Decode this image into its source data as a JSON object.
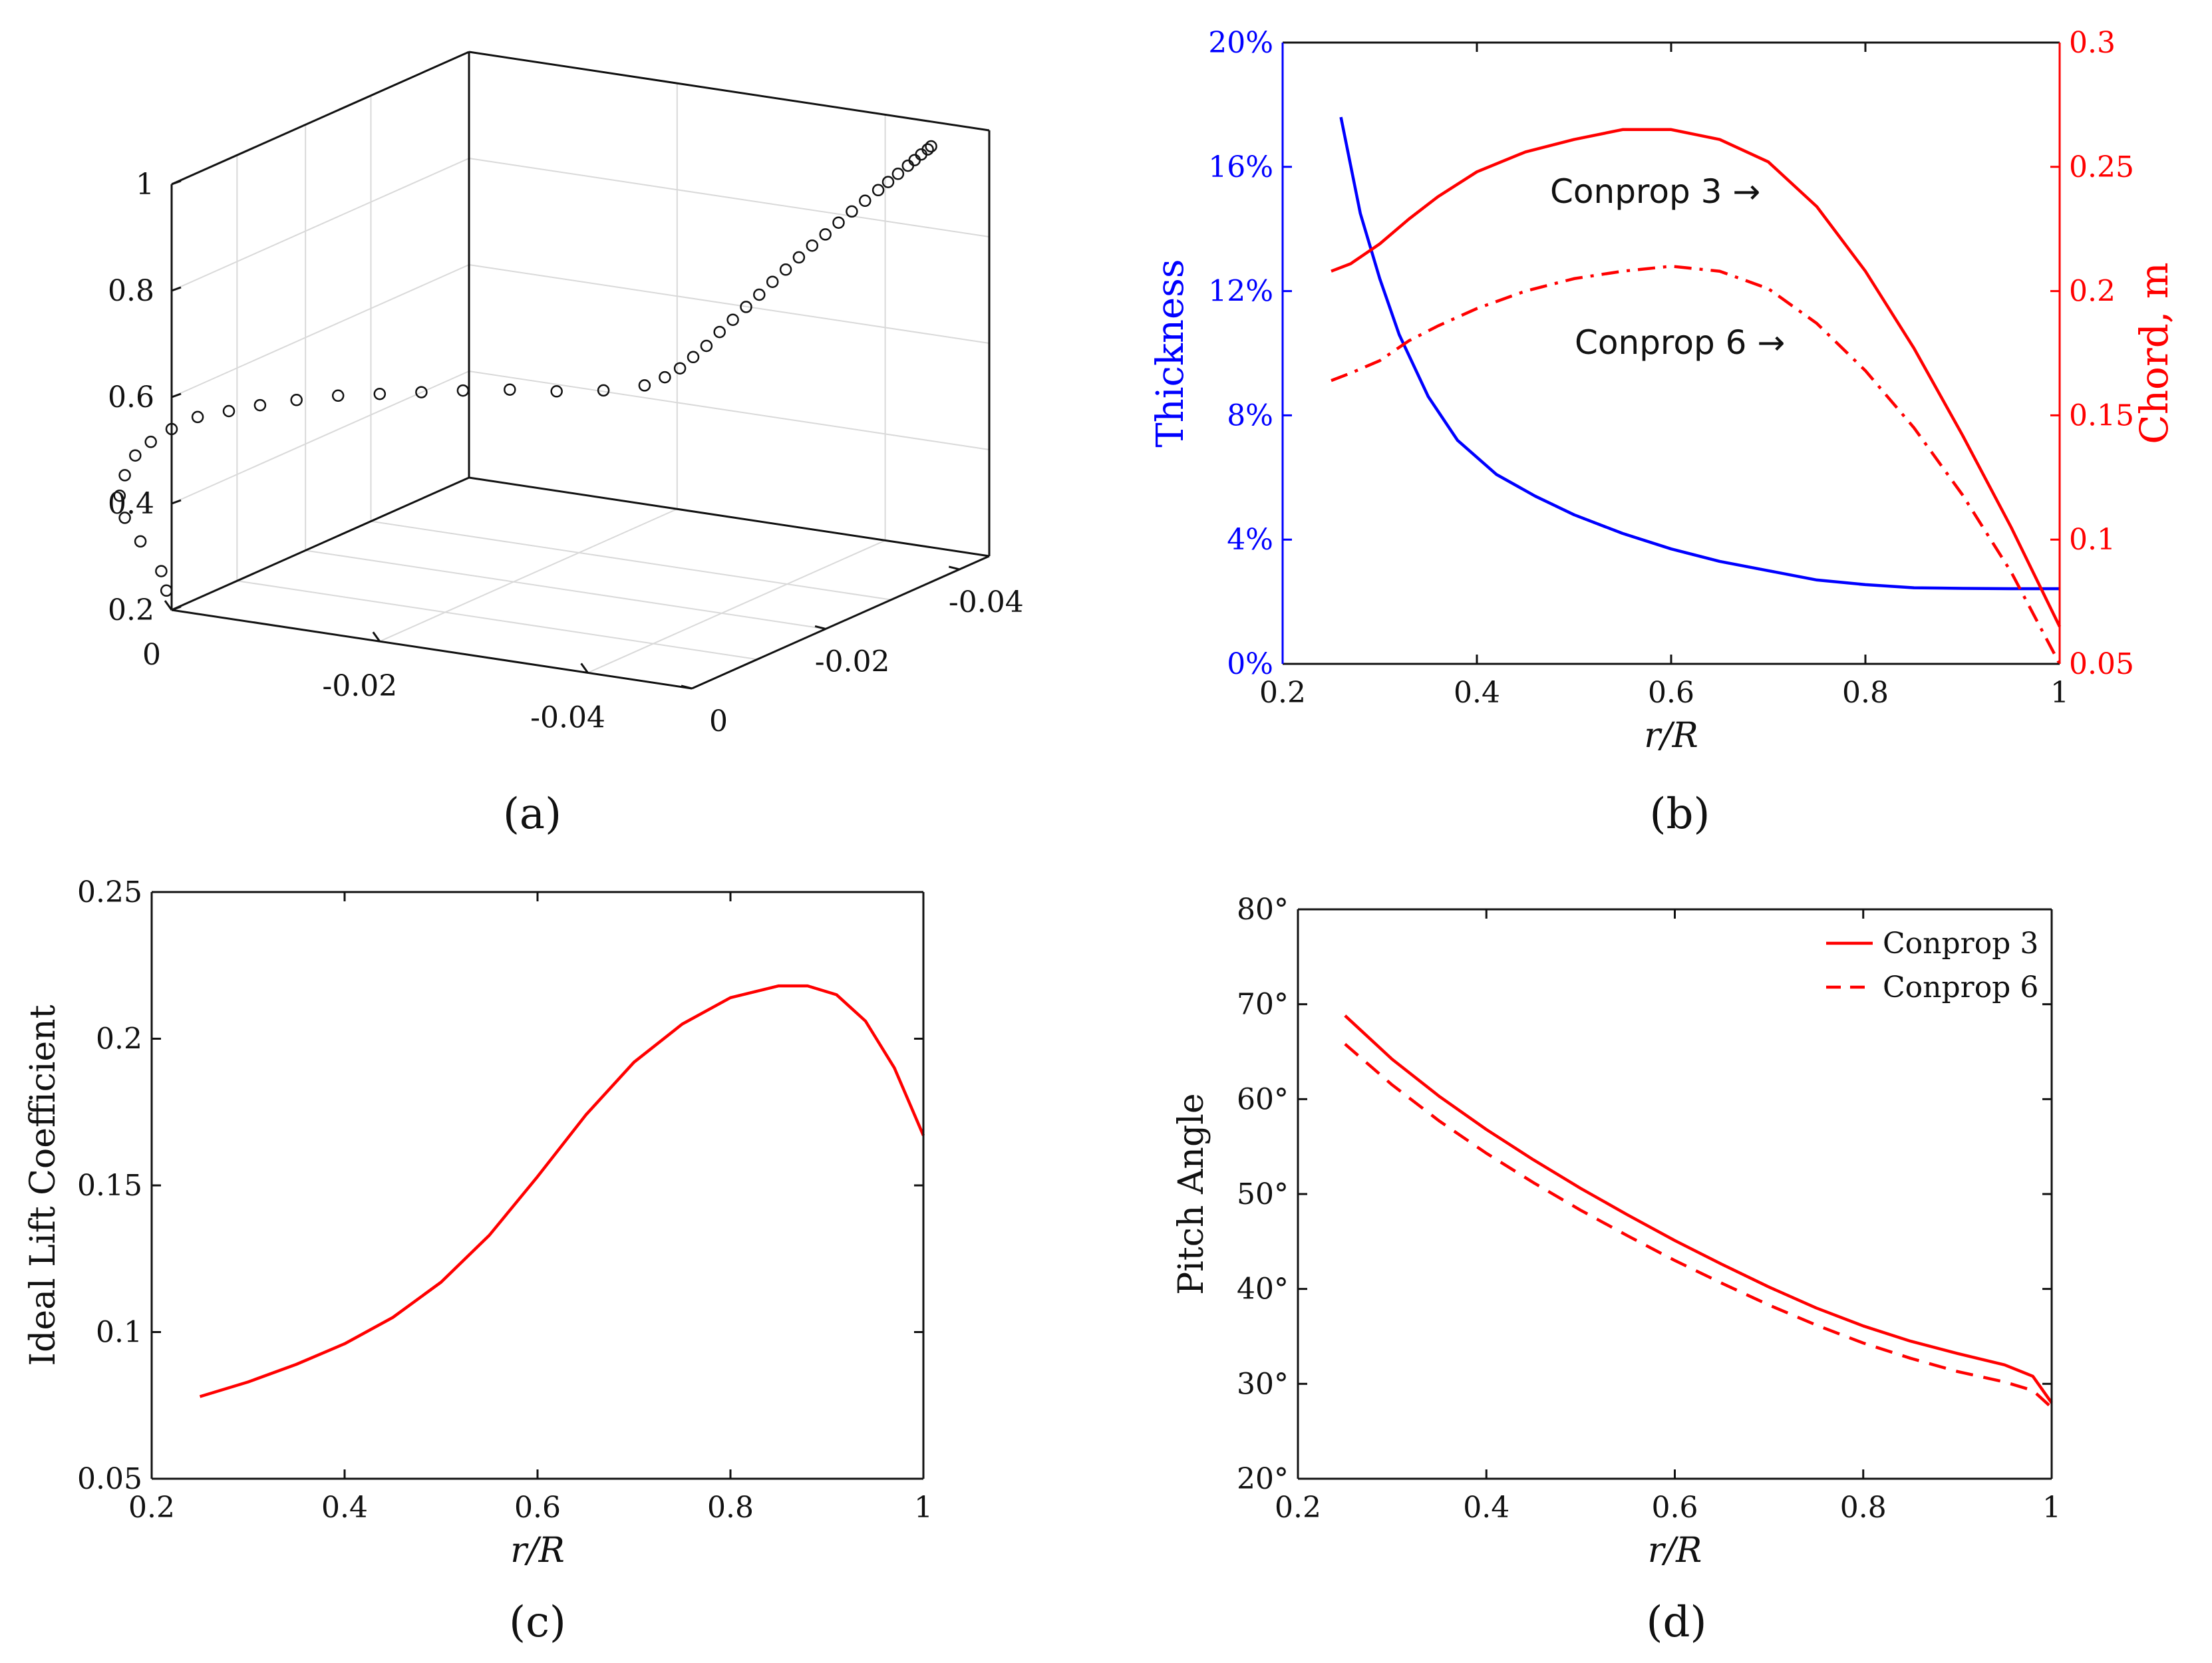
{
  "colors": {
    "red": "#ff0000",
    "blue": "#0000ff",
    "black": "#111111",
    "grid": "#d9d9d9"
  },
  "chart_data": [
    {
      "id": "a",
      "type": "scatter3d",
      "caption": "(a)",
      "zlim": [
        0.2,
        1
      ],
      "zticks": [
        "0.2",
        "0.4",
        "0.6",
        "0.8",
        "1"
      ],
      "xticks": [
        "0",
        "-0.02",
        "-0.04"
      ],
      "yticks": [
        "0",
        "-0.02",
        "-0.04"
      ],
      "points_xyz": [
        [
          0.0005,
          0.0,
          0.235
        ],
        [
          0.001,
          0.0,
          0.27
        ],
        [
          0.003,
          0.0,
          0.32
        ],
        [
          0.0045,
          0.0,
          0.36
        ],
        [
          0.005,
          0.0,
          0.4
        ],
        [
          0.0045,
          0.0,
          0.44
        ],
        [
          0.0035,
          0.0,
          0.48
        ],
        [
          0.002,
          0.0,
          0.51
        ],
        [
          0.0,
          0.0,
          0.54
        ],
        [
          -0.0025,
          0.0,
          0.57
        ],
        [
          -0.0055,
          0.0,
          0.59
        ],
        [
          -0.0085,
          0.0,
          0.61
        ],
        [
          -0.012,
          0.0,
          0.63
        ],
        [
          -0.016,
          0.0,
          0.65
        ],
        [
          -0.02,
          0.0,
          0.665
        ],
        [
          -0.024,
          0.0,
          0.68
        ],
        [
          -0.028,
          0.0,
          0.695
        ],
        [
          -0.0325,
          0.0,
          0.71
        ],
        [
          -0.037,
          0.0,
          0.72
        ],
        [
          -0.0415,
          0.0,
          0.735
        ],
        [
          -0.0445,
          -0.003,
          0.745
        ],
        [
          -0.0455,
          -0.006,
          0.755
        ],
        [
          -0.046,
          -0.009,
          0.765
        ],
        [
          -0.046,
          -0.013,
          0.775
        ],
        [
          -0.046,
          -0.017,
          0.785
        ],
        [
          -0.046,
          -0.021,
          0.8
        ],
        [
          -0.046,
          -0.025,
          0.812
        ],
        [
          -0.046,
          -0.029,
          0.825
        ],
        [
          -0.046,
          -0.033,
          0.837
        ],
        [
          -0.046,
          -0.037,
          0.85
        ],
        [
          -0.046,
          -0.041,
          0.862
        ],
        [
          -0.046,
          -0.045,
          0.874
        ],
        [
          -0.046,
          -0.049,
          0.885
        ],
        [
          -0.046,
          -0.053,
          0.895
        ],
        [
          -0.046,
          -0.057,
          0.906
        ],
        [
          -0.046,
          -0.061,
          0.916
        ],
        [
          -0.046,
          -0.065,
          0.925
        ],
        [
          -0.046,
          -0.069,
          0.934
        ],
        [
          -0.046,
          -0.072,
          0.941
        ],
        [
          -0.046,
          -0.075,
          0.948
        ],
        [
          -0.046,
          -0.078,
          0.955
        ],
        [
          -0.046,
          -0.08,
          0.96
        ],
        [
          -0.046,
          -0.082,
          0.965
        ],
        [
          -0.046,
          -0.084,
          0.969
        ],
        [
          -0.046,
          -0.085,
          0.972
        ]
      ]
    },
    {
      "id": "b",
      "type": "line",
      "caption": "(b)",
      "xlabel": "r/R",
      "ylabel_left": "Thickness",
      "ylabel_right": "Chord, m",
      "xlim": [
        0.2,
        1
      ],
      "xticks": [
        "0.2",
        "0.4",
        "0.6",
        "0.8",
        "1"
      ],
      "ylim_left": [
        0,
        20
      ],
      "yticks_left": [
        "0%",
        "4%",
        "8%",
        "12%",
        "16%",
        "20%"
      ],
      "ylim_right": [
        0.05,
        0.3
      ],
      "yticks_right": [
        "0.05",
        "0.1",
        "0.15",
        "0.2",
        "0.25",
        "0.3"
      ],
      "annotations": [
        "Conprop 3 →",
        "Conprop 6 →"
      ],
      "series": [
        {
          "name": "Thickness",
          "axis": "left",
          "color": "#0000ff",
          "style": "solid",
          "x": [
            0.26,
            0.28,
            0.3,
            0.32,
            0.35,
            0.38,
            0.42,
            0.46,
            0.5,
            0.55,
            0.6,
            0.65,
            0.7,
            0.75,
            0.8,
            0.85,
            0.9,
            0.95,
            1.0
          ],
          "y": [
            17.6,
            14.5,
            12.4,
            10.6,
            8.6,
            7.2,
            6.1,
            5.4,
            4.8,
            4.2,
            3.7,
            3.3,
            3.0,
            2.7,
            2.55,
            2.45,
            2.43,
            2.42,
            2.42
          ]
        },
        {
          "name": "Conprop 3",
          "axis": "right",
          "color": "#ff0000",
          "style": "solid",
          "x": [
            0.25,
            0.27,
            0.3,
            0.33,
            0.36,
            0.4,
            0.45,
            0.5,
            0.55,
            0.6,
            0.65,
            0.7,
            0.75,
            0.8,
            0.85,
            0.9,
            0.95,
            1.0
          ],
          "y": [
            0.208,
            0.211,
            0.219,
            0.229,
            0.238,
            0.248,
            0.256,
            0.261,
            0.265,
            0.265,
            0.261,
            0.252,
            0.234,
            0.208,
            0.177,
            0.142,
            0.105,
            0.065
          ]
        },
        {
          "name": "Conprop 6",
          "axis": "right",
          "color": "#ff0000",
          "style": "dashdot",
          "x": [
            0.25,
            0.27,
            0.3,
            0.33,
            0.36,
            0.4,
            0.45,
            0.5,
            0.55,
            0.6,
            0.65,
            0.7,
            0.75,
            0.8,
            0.85,
            0.9,
            0.95,
            1.0
          ],
          "y": [
            0.164,
            0.167,
            0.172,
            0.18,
            0.186,
            0.193,
            0.2,
            0.205,
            0.208,
            0.21,
            0.208,
            0.201,
            0.187,
            0.168,
            0.145,
            0.118,
            0.087,
            0.05
          ]
        }
      ]
    },
    {
      "id": "c",
      "type": "line",
      "caption": "(c)",
      "xlabel": "r/R",
      "ylabel": "Ideal Lift Coefficient",
      "xlim": [
        0.2,
        1
      ],
      "xticks": [
        "0.2",
        "0.4",
        "0.6",
        "0.8",
        "1"
      ],
      "ylim": [
        0.05,
        0.25
      ],
      "yticks": [
        "0.05",
        "0.1",
        "0.15",
        "0.2",
        "0.25"
      ],
      "series": [
        {
          "name": "Ideal Lift Coefficient",
          "color": "#ff0000",
          "style": "solid",
          "x": [
            0.25,
            0.3,
            0.35,
            0.4,
            0.45,
            0.5,
            0.55,
            0.6,
            0.65,
            0.7,
            0.75,
            0.8,
            0.85,
            0.88,
            0.91,
            0.94,
            0.97,
            1.0
          ],
          "y": [
            0.078,
            0.083,
            0.089,
            0.096,
            0.105,
            0.117,
            0.133,
            0.153,
            0.174,
            0.192,
            0.205,
            0.214,
            0.218,
            0.218,
            0.215,
            0.206,
            0.19,
            0.167
          ]
        }
      ]
    },
    {
      "id": "d",
      "type": "line",
      "caption": "(d)",
      "xlabel": "r/R",
      "ylabel": "Pitch Angle",
      "xlim": [
        0.2,
        1
      ],
      "xticks": [
        "0.2",
        "0.4",
        "0.6",
        "0.8",
        "1"
      ],
      "ylim": [
        20,
        80
      ],
      "yticks": [
        "20°",
        "30°",
        "40°",
        "50°",
        "60°",
        "70°",
        "80°"
      ],
      "legend": "top-right",
      "series": [
        {
          "name": "Conprop 3",
          "color": "#ff0000",
          "style": "solid",
          "x": [
            0.25,
            0.3,
            0.35,
            0.4,
            0.45,
            0.5,
            0.55,
            0.6,
            0.65,
            0.7,
            0.75,
            0.8,
            0.85,
            0.9,
            0.95,
            0.98,
            1.0
          ],
          "y": [
            68.8,
            64.2,
            60.3,
            56.8,
            53.6,
            50.6,
            47.8,
            45.1,
            42.6,
            40.2,
            38.0,
            36.1,
            34.5,
            33.2,
            32.0,
            30.8,
            28.0
          ]
        },
        {
          "name": "Conprop 6",
          "color": "#ff0000",
          "style": "dashed",
          "x": [
            0.25,
            0.3,
            0.35,
            0.4,
            0.45,
            0.5,
            0.55,
            0.6,
            0.65,
            0.7,
            0.75,
            0.8,
            0.85,
            0.9,
            0.95,
            0.98,
            1.0
          ],
          "y": [
            65.8,
            61.5,
            57.7,
            54.3,
            51.2,
            48.3,
            45.6,
            43.0,
            40.6,
            38.3,
            36.2,
            34.3,
            32.7,
            31.3,
            30.2,
            29.3,
            27.5
          ]
        }
      ]
    }
  ]
}
